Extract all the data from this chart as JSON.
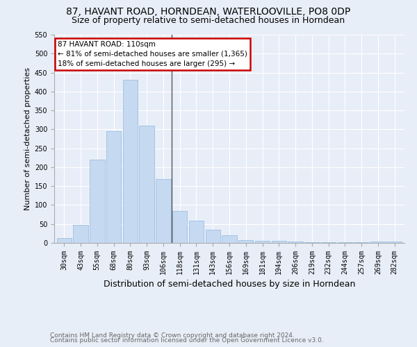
{
  "title": "87, HAVANT ROAD, HORNDEAN, WATERLOOVILLE, PO8 0DP",
  "subtitle": "Size of property relative to semi-detached houses in Horndean",
  "xlabel": "Distribution of semi-detached houses by size in Horndean",
  "ylabel": "Number of semi-detached properties",
  "categories": [
    "30sqm",
    "43sqm",
    "55sqm",
    "68sqm",
    "80sqm",
    "93sqm",
    "106sqm",
    "118sqm",
    "131sqm",
    "143sqm",
    "156sqm",
    "169sqm",
    "181sqm",
    "194sqm",
    "206sqm",
    "219sqm",
    "232sqm",
    "244sqm",
    "257sqm",
    "269sqm",
    "282sqm"
  ],
  "values": [
    13,
    48,
    220,
    295,
    430,
    310,
    168,
    84,
    58,
    34,
    20,
    7,
    5,
    5,
    3,
    2,
    2,
    2,
    2,
    3,
    3
  ],
  "bar_color": "#c5d9f0",
  "bar_edge_color": "#8fb8de",
  "annotation_title": "87 HAVANT ROAD: 110sqm",
  "annotation_line1": "← 81% of semi-detached houses are smaller (1,365)",
  "annotation_line2": "18% of semi-detached houses are larger (295) →",
  "annotation_box_facecolor": "#ffffff",
  "annotation_box_edgecolor": "#cc0000",
  "vline_x_index": 6.5,
  "ylim": [
    0,
    550
  ],
  "yticks": [
    0,
    50,
    100,
    150,
    200,
    250,
    300,
    350,
    400,
    450,
    500,
    550
  ],
  "footnote1": "Contains HM Land Registry data © Crown copyright and database right 2024.",
  "footnote2": "Contains public sector information licensed under the Open Government Licence v3.0.",
  "bg_color": "#e8eef8",
  "grid_color": "#ffffff",
  "title_fontsize": 10,
  "subtitle_fontsize": 9,
  "xlabel_fontsize": 9,
  "ylabel_fontsize": 8,
  "tick_fontsize": 7,
  "annot_fontsize": 7.5,
  "footnote_fontsize": 6.5
}
